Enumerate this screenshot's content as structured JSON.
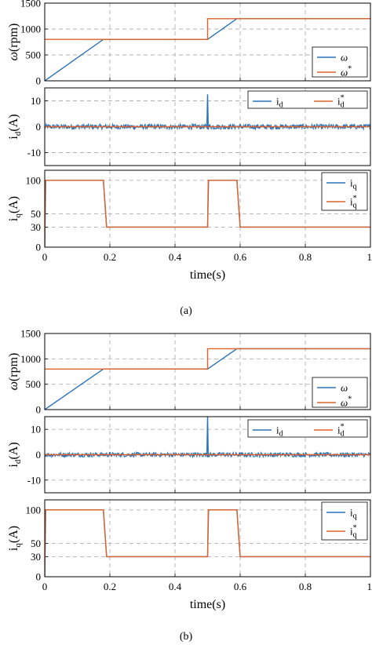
{
  "figure": {
    "colors": {
      "series1": "#2a72b8",
      "series2": "#e0622a",
      "grid": "#b0b0b0",
      "axis": "#000000"
    },
    "panels": [
      {
        "caption": "(a)",
        "xlabel": "time(s)",
        "subplots": [
          {
            "ylabel_main": "ω",
            "ylabel_unit": "(rpm)",
            "yticks": [
              "0",
              "500",
              "1000",
              "1500"
            ],
            "legend": [
              {
                "label": "ω",
                "sup": ""
              },
              {
                "label": "ω",
                "sup": "*"
              }
            ]
          },
          {
            "ylabel_main": "i",
            "ylabel_sub": "d",
            "ylabel_unit": "(A)",
            "yticks": [
              "-10",
              "0",
              "10"
            ],
            "legend": [
              {
                "label": "i",
                "sub": "d",
                "sup": ""
              },
              {
                "label": "i",
                "sub": "d",
                "sup": "*"
              }
            ]
          },
          {
            "ylabel_main": "i",
            "ylabel_sub": "q",
            "ylabel_unit": "(A)",
            "yticks": [
              "0",
              "30",
              "50",
              "100"
            ],
            "legend": [
              {
                "label": "i",
                "sub": "q",
                "sup": ""
              },
              {
                "label": "i",
                "sub": "q",
                "sup": "*"
              }
            ]
          }
        ],
        "xticks": [
          "0",
          "0.2",
          "0.4",
          "0.6",
          "0.8",
          "1"
        ]
      },
      {
        "caption": "(b)",
        "xlabel": "time(s)",
        "subplots": [
          {
            "ylabel_main": "ω",
            "ylabel_unit": "(rpm)",
            "yticks": [
              "0",
              "500",
              "1000",
              "1500"
            ],
            "legend": [
              {
                "label": "ω",
                "sup": ""
              },
              {
                "label": "ω",
                "sup": "*"
              }
            ]
          },
          {
            "ylabel_main": "i",
            "ylabel_sub": "d",
            "ylabel_unit": "(A)",
            "yticks": [
              "-10",
              "0",
              "10"
            ],
            "legend": [
              {
                "label": "i",
                "sub": "d",
                "sup": ""
              },
              {
                "label": "i",
                "sub": "d",
                "sup": "*"
              }
            ]
          },
          {
            "ylabel_main": "i",
            "ylabel_sub": "q",
            "ylabel_unit": "(A)",
            "yticks": [
              "0",
              "30",
              "50",
              "100"
            ],
            "legend": [
              {
                "label": "i",
                "sub": "q",
                "sup": ""
              },
              {
                "label": "i",
                "sub": "q",
                "sup": "*"
              }
            ]
          }
        ],
        "xticks": [
          "0",
          "0.2",
          "0.4",
          "0.6",
          "0.8",
          "1"
        ]
      }
    ]
  },
  "chart_data": [
    {
      "type": "line",
      "panel": "(a)",
      "title": "",
      "xlabel": "time(s)",
      "ylabel": "ω(rpm)",
      "xlim": [
        0,
        1
      ],
      "ylim": [
        0,
        1500
      ],
      "grid": true,
      "legend_position": "bottom-right",
      "series": [
        {
          "name": "ω",
          "x": [
            0,
            0.18,
            0.5,
            0.59,
            1
          ],
          "y": [
            0,
            800,
            800,
            1200,
            1200
          ]
        },
        {
          "name": "ω*",
          "x": [
            0,
            0.5,
            0.5,
            1
          ],
          "y": [
            800,
            800,
            1200,
            1200
          ]
        }
      ]
    },
    {
      "type": "line",
      "panel": "(a)",
      "title": "",
      "xlabel": "time(s)",
      "ylabel": "id(A)",
      "xlim": [
        0,
        1
      ],
      "ylim": [
        -15,
        15
      ],
      "grid": true,
      "legend_position": "top-right",
      "series": [
        {
          "name": "id",
          "x": [
            0,
            0.18,
            0.499,
            0.5,
            0.501,
            0.59,
            1
          ],
          "y": [
            0,
            0,
            0,
            12.5,
            0,
            0,
            0
          ],
          "noise_amplitude": 1.0
        },
        {
          "name": "id*",
          "x": [
            0,
            1
          ],
          "y": [
            0,
            0
          ]
        }
      ]
    },
    {
      "type": "line",
      "panel": "(a)",
      "title": "",
      "xlabel": "time(s)",
      "ylabel": "iq(A)",
      "xlim": [
        0,
        1
      ],
      "ylim": [
        0,
        115
      ],
      "grid": true,
      "legend_position": "top-right",
      "series": [
        {
          "name": "iq",
          "x": [
            0,
            0.003,
            0.18,
            0.19,
            0.5,
            0.503,
            0.59,
            0.6,
            1
          ],
          "y": [
            0,
            100,
            100,
            30,
            30,
            100,
            100,
            30,
            30
          ]
        },
        {
          "name": "iq*",
          "x": [
            0,
            0.002,
            0.18,
            0.19,
            0.5,
            0.502,
            0.59,
            0.6,
            1
          ],
          "y": [
            0,
            100,
            100,
            30,
            30,
            100,
            100,
            30,
            30
          ]
        }
      ]
    },
    {
      "type": "line",
      "panel": "(b)",
      "title": "",
      "xlabel": "time(s)",
      "ylabel": "ω(rpm)",
      "xlim": [
        0,
        1
      ],
      "ylim": [
        0,
        1500
      ],
      "grid": true,
      "legend_position": "bottom-right",
      "series": [
        {
          "name": "ω",
          "x": [
            0,
            0.18,
            0.5,
            0.59,
            1
          ],
          "y": [
            0,
            800,
            800,
            1200,
            1200
          ]
        },
        {
          "name": "ω*",
          "x": [
            0,
            0.5,
            0.5,
            1
          ],
          "y": [
            800,
            800,
            1200,
            1200
          ]
        }
      ]
    },
    {
      "type": "line",
      "panel": "(b)",
      "title": "",
      "xlabel": "time(s)",
      "ylabel": "id(A)",
      "xlim": [
        0,
        1
      ],
      "ylim": [
        -15,
        15
      ],
      "grid": true,
      "legend_position": "top-right",
      "series": [
        {
          "name": "id",
          "x": [
            0,
            0.18,
            0.499,
            0.5,
            0.501,
            0.59,
            1
          ],
          "y": [
            0,
            0,
            0,
            15,
            0,
            0,
            0
          ],
          "noise_amplitude": 0.9
        },
        {
          "name": "id*",
          "x": [
            0,
            1
          ],
          "y": [
            0,
            0
          ]
        }
      ]
    },
    {
      "type": "line",
      "panel": "(b)",
      "title": "",
      "xlabel": "time(s)",
      "ylabel": "iq(A)",
      "xlim": [
        0,
        1
      ],
      "ylim": [
        0,
        115
      ],
      "grid": true,
      "legend_position": "top-right",
      "series": [
        {
          "name": "iq",
          "x": [
            0,
            0.003,
            0.18,
            0.19,
            0.5,
            0.503,
            0.59,
            0.6,
            1
          ],
          "y": [
            0,
            100,
            100,
            30,
            30,
            100,
            100,
            30,
            30
          ]
        },
        {
          "name": "iq*",
          "x": [
            0,
            0.002,
            0.18,
            0.19,
            0.5,
            0.502,
            0.59,
            0.6,
            1
          ],
          "y": [
            0,
            100,
            100,
            30,
            30,
            100,
            100,
            30,
            30
          ]
        }
      ]
    }
  ]
}
